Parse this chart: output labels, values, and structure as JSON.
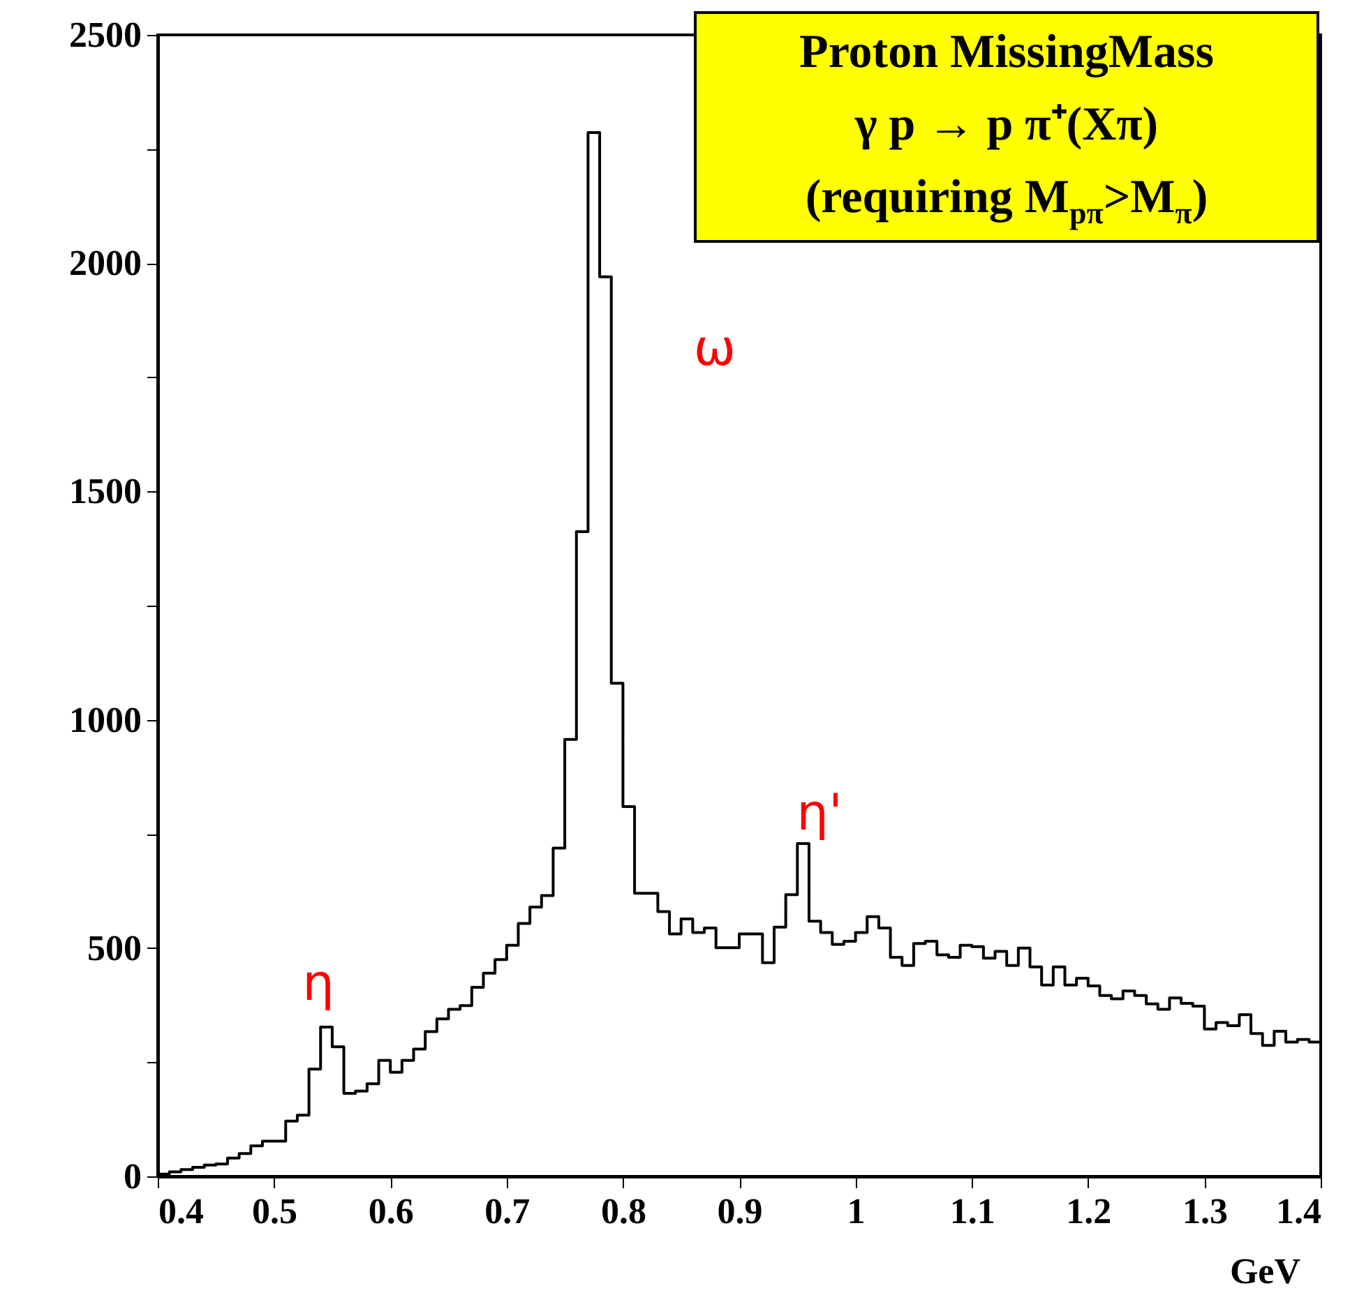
{
  "chart_data": {
    "type": "histogram",
    "title": "Proton MissingMass",
    "subtitle": "γ  p → p π⁺(Xπ)\n(requiring M$_{pπ}$>M$_{π}$)",
    "xlabel": "GeV",
    "bins": [
      0.4,
      0.41,
      0.42,
      0.43,
      0.44,
      0.45,
      0.46,
      0.47,
      0.48,
      0.49,
      0.5,
      0.51,
      0.52,
      0.53,
      0.54,
      0.55,
      0.56,
      0.57,
      0.58,
      0.59,
      0.6,
      0.61,
      0.62,
      0.63,
      0.64,
      0.65,
      0.66,
      0.67,
      0.68,
      0.69,
      0.7,
      0.71,
      0.72,
      0.73,
      0.74,
      0.75,
      0.76,
      0.77,
      0.78,
      0.79,
      0.8,
      0.81,
      0.82,
      0.83,
      0.84,
      0.85,
      0.86,
      0.87,
      0.88,
      0.89,
      0.9,
      0.91,
      0.92,
      0.93,
      0.94,
      0.95,
      0.96,
      0.97,
      0.98,
      0.99,
      1.0,
      1.01,
      1.02,
      1.03,
      1.04,
      1.05,
      1.06,
      1.07,
      1.08,
      1.09,
      1.1,
      1.11,
      1.12,
      1.13,
      1.14,
      1.15,
      1.16,
      1.17,
      1.18,
      1.19,
      1.2,
      1.21,
      1.22,
      1.23,
      1.24,
      1.25,
      1.26,
      1.27,
      1.28,
      1.29,
      1.3,
      1.31,
      1.32,
      1.33,
      1.34,
      1.35,
      1.36,
      1.37,
      1.38,
      1.39,
      1.4
    ],
    "values": [
      5,
      10,
      15,
      20,
      25,
      27,
      40,
      50,
      67,
      77,
      77,
      121,
      134,
      235,
      327,
      284,
      182,
      187,
      203,
      254,
      228,
      254,
      279,
      317,
      345,
      366,
      374,
      414,
      445,
      475,
      506,
      554,
      590,
      615,
      719,
      957,
      1412,
      2286,
      1970,
      1080,
      810,
      620,
      620,
      580,
      531,
      564,
      534,
      544,
      501,
      501,
      531,
      531,
      468,
      546,
      617,
      729,
      559,
      534,
      508,
      515,
      534,
      569,
      544,
      480,
      462,
      510,
      515,
      485,
      480,
      506,
      503,
      478,
      493,
      462,
      500,
      459,
      419,
      459,
      419,
      434,
      417,
      396,
      389,
      406,
      396,
      378,
      366,
      391,
      379,
      373,
      323,
      337,
      330,
      354,
      313,
      287,
      318,
      294,
      300,
      294
    ],
    "color": "#000000",
    "xlim": [
      0.4,
      1.4
    ],
    "xticks": [
      0.4,
      0.5,
      0.6,
      0.7,
      0.8,
      0.9,
      1,
      1.1,
      1.2,
      1.3,
      1.4
    ],
    "ylim": [
      0,
      2500
    ],
    "yticks": [
      0,
      {
        "value": 250,
        "label": null
      },
      500,
      {
        "value": 750,
        "label": null
      },
      1000,
      {
        "value": 1250,
        "label": null
      },
      1500,
      {
        "value": 1750,
        "label": null
      },
      2000,
      {
        "value": 2250,
        "label": null
      },
      2500
    ],
    "annotations": [
      "η",
      "ω",
      "η'"
    ],
    "grid": false
  }
}
